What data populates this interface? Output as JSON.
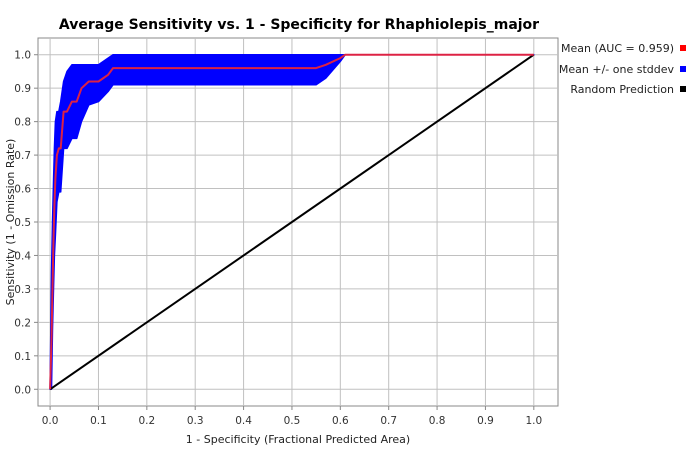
{
  "chart_data": {
    "type": "line",
    "title": "Average Sensitivity vs. 1 - Specificity for Rhaphiolepis_major",
    "xlabel": "1 - Specificity (Fractional Predicted Area)",
    "ylabel": "Sensitivity (1 - Omission Rate)",
    "xlim": [
      -0.025,
      1.05
    ],
    "ylim": [
      -0.05,
      1.05
    ],
    "x_ticks": [
      0.0,
      0.1,
      0.2,
      0.3,
      0.4,
      0.5,
      0.6,
      0.7,
      0.8,
      0.9,
      1.0
    ],
    "y_ticks": [
      0.0,
      0.1,
      0.2,
      0.3,
      0.4,
      0.5,
      0.6,
      0.7,
      0.8,
      0.9,
      1.0
    ],
    "tick_labels": [
      "0.0",
      "0.1",
      "0.2",
      "0.3",
      "0.4",
      "0.5",
      "0.6",
      "0.7",
      "0.8",
      "0.9",
      "1.0"
    ],
    "grid": true,
    "legend_position": "right-top",
    "legend": [
      {
        "label": "Mean (AUC = 0.959)",
        "color": "#ff0000"
      },
      {
        "label": "Mean +/- one stddev",
        "color": "#0000ff"
      },
      {
        "label": "Random Prediction",
        "color": "#000000"
      }
    ],
    "series": [
      {
        "name": "Mean (AUC = 0.959)",
        "color": "#dd2244",
        "x": [
          0.0,
          0.003,
          0.005,
          0.007,
          0.009,
          0.011,
          0.014,
          0.018,
          0.022,
          0.028,
          0.035,
          0.045,
          0.055,
          0.065,
          0.08,
          0.1,
          0.12,
          0.13,
          0.2,
          0.3,
          0.4,
          0.5,
          0.55,
          0.57,
          0.6,
          0.61,
          0.7,
          0.8,
          0.9,
          1.0
        ],
        "y": [
          0.0,
          0.15,
          0.3,
          0.45,
          0.55,
          0.63,
          0.7,
          0.72,
          0.72,
          0.83,
          0.83,
          0.86,
          0.86,
          0.9,
          0.92,
          0.92,
          0.94,
          0.96,
          0.96,
          0.96,
          0.96,
          0.96,
          0.96,
          0.97,
          0.99,
          1.0,
          1.0,
          1.0,
          1.0,
          1.0
        ]
      },
      {
        "name": "Mean +/- one stddev",
        "color": "#0000ff",
        "x": [
          0.0,
          0.003,
          0.005,
          0.007,
          0.009,
          0.011,
          0.014,
          0.018,
          0.022,
          0.028,
          0.035,
          0.045,
          0.055,
          0.065,
          0.08,
          0.1,
          0.12,
          0.13,
          0.2,
          0.3,
          0.4,
          0.5,
          0.55,
          0.57,
          0.6,
          0.61,
          0.7,
          0.8,
          0.9,
          1.0
        ],
        "upper": [
          0.0,
          0.35,
          0.5,
          0.62,
          0.72,
          0.8,
          0.83,
          0.83,
          0.86,
          0.92,
          0.95,
          0.97,
          0.97,
          0.97,
          0.97,
          0.97,
          0.99,
          1.0,
          1.0,
          1.0,
          1.0,
          1.0,
          1.0,
          1.0,
          1.0,
          1.0,
          1.0,
          1.0,
          1.0,
          1.0
        ],
        "lower": [
          0.0,
          0.0,
          0.18,
          0.3,
          0.4,
          0.46,
          0.56,
          0.59,
          0.59,
          0.72,
          0.72,
          0.75,
          0.75,
          0.8,
          0.85,
          0.86,
          0.89,
          0.91,
          0.91,
          0.91,
          0.91,
          0.91,
          0.91,
          0.93,
          0.98,
          1.0,
          1.0,
          1.0,
          1.0,
          1.0
        ]
      },
      {
        "name": "Random Prediction",
        "color": "#000000",
        "x": [
          0.0,
          1.0
        ],
        "y": [
          0.0,
          1.0
        ]
      }
    ]
  }
}
